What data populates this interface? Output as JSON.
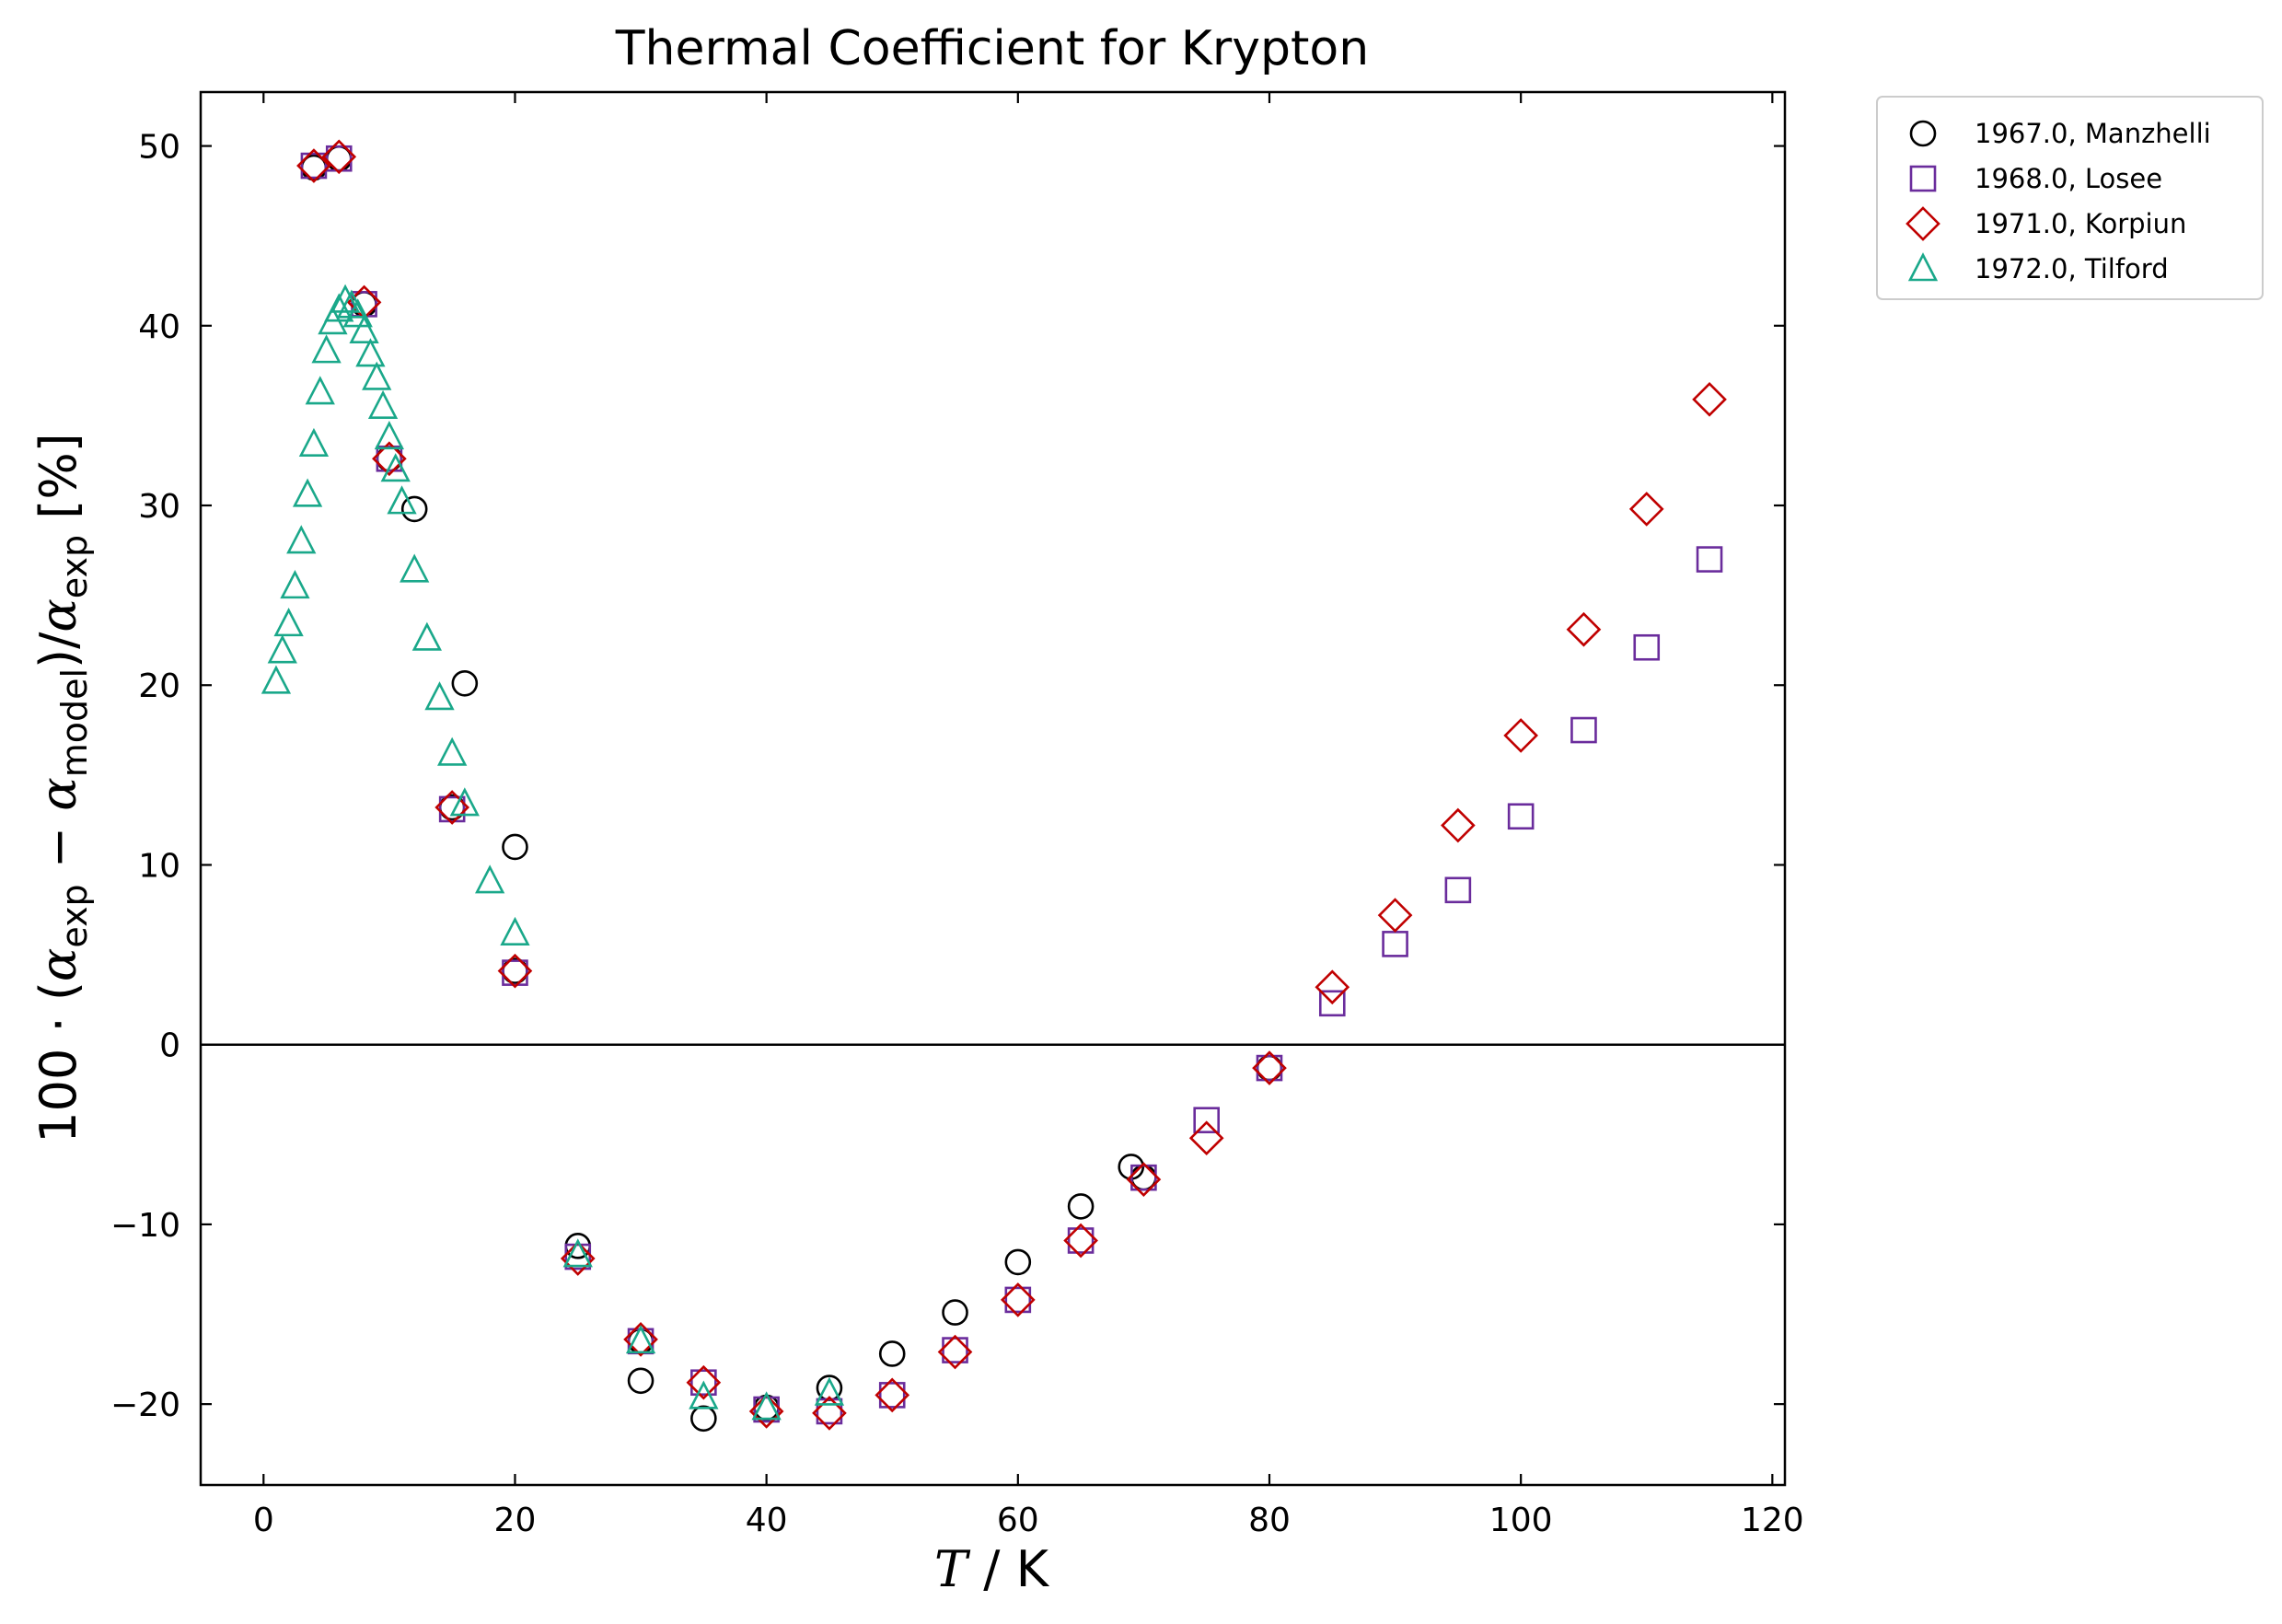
{
  "chart_data": {
    "type": "scatter",
    "title": "Thermal Coefficient for Krypton",
    "xlim": [
      -5,
      121
    ],
    "ylim": [
      -24.5,
      53
    ],
    "xticks": [
      0,
      20,
      40,
      60,
      80,
      100,
      120
    ],
    "yticks": [
      -20,
      -10,
      0,
      10,
      20,
      30,
      40,
      50
    ],
    "xtick_labels": [
      "0",
      "20",
      "40",
      "60",
      "80",
      "100",
      "120"
    ],
    "ytick_labels": [
      "−20",
      "−10",
      "0",
      "10",
      "20",
      "30",
      "40",
      "50"
    ],
    "zero_line": true,
    "grid": false,
    "legend_position": "outside-top-right",
    "series": [
      {
        "name": "1967.0, Manzhelli",
        "marker": "circle",
        "color": "#000000",
        "points": [
          [
            4,
            48.8
          ],
          [
            6,
            49.3
          ],
          [
            8,
            41.2
          ],
          [
            10,
            32.6
          ],
          [
            12,
            29.8
          ],
          [
            15,
            13.2
          ],
          [
            16,
            20.1
          ],
          [
            20,
            4.1
          ],
          [
            20,
            11.0
          ],
          [
            25,
            -11.2
          ],
          [
            30,
            -16.5
          ],
          [
            30,
            -18.7
          ],
          [
            35,
            -20.8
          ],
          [
            40,
            -20.2
          ],
          [
            45,
            -19.1
          ],
          [
            50,
            -17.2
          ],
          [
            55,
            -14.9
          ],
          [
            60,
            -12.1
          ],
          [
            65,
            -9.0
          ],
          [
            69,
            -6.8
          ],
          [
            70,
            -7.4
          ],
          [
            80,
            -1.3
          ]
        ]
      },
      {
        "name": "1968.0, Losee",
        "marker": "square",
        "color": "#6a2c9c",
        "points": [
          [
            4,
            48.9
          ],
          [
            6,
            49.3
          ],
          [
            8,
            41.2
          ],
          [
            10,
            32.6
          ],
          [
            15,
            13.1
          ],
          [
            20,
            4.0
          ],
          [
            25,
            -11.8
          ],
          [
            30,
            -16.5
          ],
          [
            35,
            -18.8
          ],
          [
            40,
            -20.3
          ],
          [
            45,
            -20.4
          ],
          [
            50,
            -19.5
          ],
          [
            55,
            -17.0
          ],
          [
            60,
            -14.2
          ],
          [
            65,
            -10.9
          ],
          [
            70,
            -7.4
          ],
          [
            75,
            -4.2
          ],
          [
            80,
            -1.3
          ],
          [
            85,
            2.3
          ],
          [
            90,
            5.6
          ],
          [
            95,
            8.6
          ],
          [
            100,
            12.7
          ],
          [
            105,
            17.5
          ],
          [
            110,
            22.1
          ],
          [
            115,
            27.0
          ]
        ]
      },
      {
        "name": "1971.0, Korpiun",
        "marker": "diamond",
        "color": "#c00000",
        "points": [
          [
            4,
            48.9
          ],
          [
            6,
            49.4
          ],
          [
            8,
            41.3
          ],
          [
            10,
            32.6
          ],
          [
            15,
            13.2
          ],
          [
            20,
            4.1
          ],
          [
            25,
            -11.9
          ],
          [
            30,
            -16.4
          ],
          [
            35,
            -18.8
          ],
          [
            40,
            -20.4
          ],
          [
            45,
            -20.5
          ],
          [
            50,
            -19.5
          ],
          [
            55,
            -17.1
          ],
          [
            60,
            -14.2
          ],
          [
            65,
            -10.9
          ],
          [
            70,
            -7.5
          ],
          [
            75,
            -5.2
          ],
          [
            80,
            -1.3
          ],
          [
            85,
            3.2
          ],
          [
            90,
            7.2
          ],
          [
            95,
            12.2
          ],
          [
            100,
            17.2
          ],
          [
            105,
            23.1
          ],
          [
            110,
            29.8
          ],
          [
            115,
            35.9
          ]
        ]
      },
      {
        "name": "1972.0, Tilford",
        "marker": "triangle",
        "color": "#1aa88a",
        "points": [
          [
            1,
            20.2
          ],
          [
            1.5,
            21.9
          ],
          [
            2,
            23.4
          ],
          [
            2.5,
            25.5
          ],
          [
            3,
            28.0
          ],
          [
            3.5,
            30.6
          ],
          [
            4,
            33.4
          ],
          [
            4.5,
            36.3
          ],
          [
            5,
            38.6
          ],
          [
            5.5,
            40.2
          ],
          [
            6,
            40.9
          ],
          [
            6.5,
            41.4
          ],
          [
            7,
            41.1
          ],
          [
            7.5,
            40.6
          ],
          [
            8,
            39.7
          ],
          [
            8.5,
            38.4
          ],
          [
            9,
            37.1
          ],
          [
            9.5,
            35.5
          ],
          [
            10,
            33.8
          ],
          [
            10.5,
            32.0
          ],
          [
            11,
            30.2
          ],
          [
            12,
            26.4
          ],
          [
            13,
            22.6
          ],
          [
            14,
            19.3
          ],
          [
            15,
            16.2
          ],
          [
            16,
            13.4
          ],
          [
            18,
            9.1
          ],
          [
            20,
            6.2
          ],
          [
            25,
            -11.7
          ],
          [
            30,
            -16.5
          ],
          [
            35,
            -19.6
          ],
          [
            40,
            -20.2
          ],
          [
            45,
            -19.4
          ]
        ]
      }
    ]
  }
}
